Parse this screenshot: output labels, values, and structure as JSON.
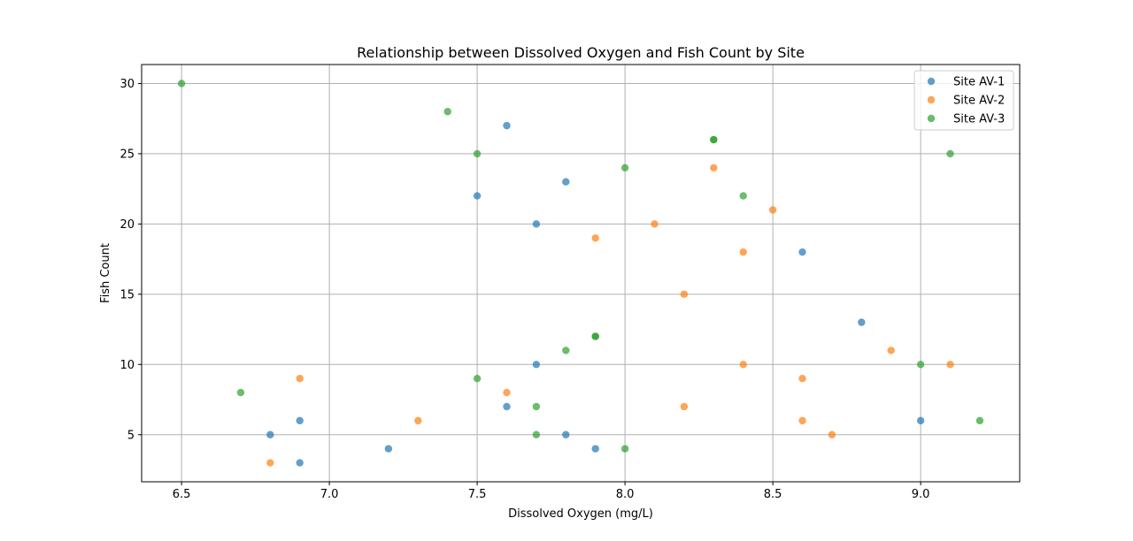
{
  "chart_data": {
    "type": "scatter",
    "title": "Relationship between Dissolved Oxygen and Fish Count by Site",
    "xlabel": "Dissolved Oxygen (mg/L)",
    "ylabel": "Fish Count",
    "xlim": [
      6.365,
      9.335
    ],
    "ylim": [
      1.65,
      31.35
    ],
    "xticks": [
      6.5,
      7.0,
      7.5,
      8.0,
      8.5,
      9.0
    ],
    "xtick_labels": [
      "6.5",
      "7.0",
      "7.5",
      "8.0",
      "8.5",
      "9.0"
    ],
    "yticks": [
      5,
      10,
      15,
      20,
      25,
      30
    ],
    "ytick_labels": [
      "5",
      "10",
      "15",
      "20",
      "25",
      "30"
    ],
    "grid": true,
    "legend_position": "top-right",
    "series": [
      {
        "name": "Site AV-1",
        "color": "#1f77b4",
        "points": [
          [
            7.6,
            27
          ],
          [
            7.8,
            23
          ],
          [
            7.5,
            22
          ],
          [
            7.7,
            20
          ],
          [
            8.6,
            18
          ],
          [
            8.8,
            13
          ],
          [
            7.7,
            10
          ],
          [
            7.6,
            7
          ],
          [
            9.0,
            6
          ],
          [
            6.9,
            6
          ],
          [
            7.8,
            5
          ],
          [
            6.8,
            5
          ],
          [
            7.2,
            4
          ],
          [
            7.9,
            4
          ],
          [
            6.9,
            3
          ]
        ]
      },
      {
        "name": "Site AV-2",
        "color": "#ff7f0e",
        "points": [
          [
            8.3,
            24
          ],
          [
            8.5,
            21
          ],
          [
            8.1,
            20
          ],
          [
            7.9,
            19
          ],
          [
            8.4,
            18
          ],
          [
            8.2,
            15
          ],
          [
            8.9,
            11
          ],
          [
            8.4,
            10
          ],
          [
            9.1,
            10
          ],
          [
            6.9,
            9
          ],
          [
            8.6,
            9
          ],
          [
            7.6,
            8
          ],
          [
            8.2,
            7
          ],
          [
            7.3,
            6
          ],
          [
            8.6,
            6
          ],
          [
            8.7,
            5
          ],
          [
            6.8,
            3
          ]
        ]
      },
      {
        "name": "Site AV-3",
        "color": "#2ca02c",
        "points": [
          [
            6.5,
            30
          ],
          [
            7.4,
            28
          ],
          [
            8.3,
            26
          ],
          [
            8.3,
            26
          ],
          [
            7.5,
            25
          ],
          [
            9.1,
            25
          ],
          [
            8.0,
            24
          ],
          [
            8.4,
            22
          ],
          [
            7.9,
            12
          ],
          [
            7.9,
            12
          ],
          [
            7.8,
            11
          ],
          [
            9.0,
            10
          ],
          [
            7.5,
            9
          ],
          [
            6.7,
            8
          ],
          [
            7.7,
            7
          ],
          [
            9.2,
            6
          ],
          [
            7.7,
            5
          ],
          [
            8.0,
            4
          ]
        ]
      }
    ]
  }
}
